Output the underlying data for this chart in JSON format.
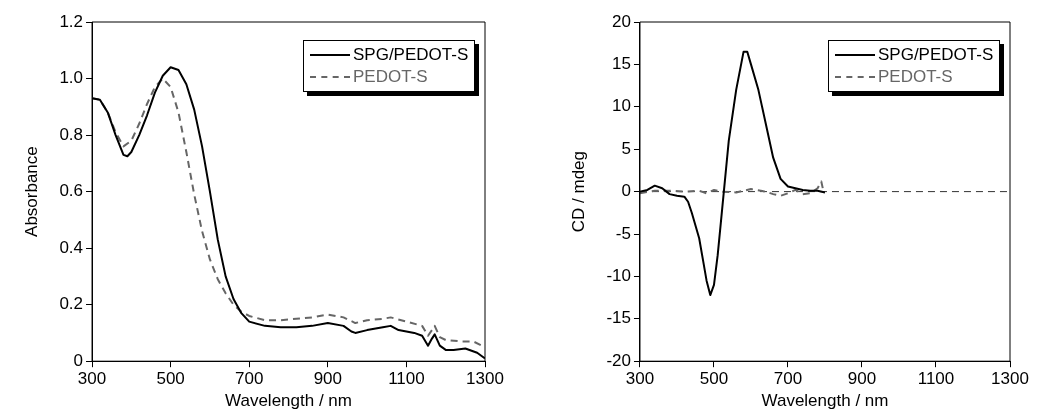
{
  "chart_data": [
    {
      "type": "line",
      "xlabel": "Wavelength / nm",
      "ylabel": "Absorbance",
      "xlim": [
        300,
        1300
      ],
      "xticks": [
        300,
        500,
        700,
        900,
        1100,
        1300
      ],
      "ylim": [
        0,
        1.2
      ],
      "yticks": [
        {
          "value": 0,
          "label": "0"
        },
        0.2,
        0.4,
        0.6,
        0.8,
        {
          "value": 1,
          "label": "1.0"
        },
        1.2
      ],
      "grid": false,
      "legend": "top right",
      "marker": "none",
      "series": [
        {
          "name": "SPG/PEDOT-S",
          "color": "#000000",
          "line_style": "solid",
          "x": [
            300,
            320,
            340,
            360,
            380,
            390,
            400,
            420,
            440,
            460,
            480,
            500,
            520,
            540,
            560,
            580,
            600,
            620,
            640,
            660,
            680,
            700,
            740,
            780,
            820,
            860,
            900,
            940,
            960,
            970,
            1000,
            1040,
            1060,
            1080,
            1120,
            1140,
            1155,
            1165,
            1172,
            1185,
            1200,
            1220,
            1250,
            1280,
            1300
          ],
          "values": [
            0.93,
            0.925,
            0.88,
            0.8,
            0.73,
            0.725,
            0.74,
            0.8,
            0.87,
            0.95,
            1.01,
            1.04,
            1.03,
            0.98,
            0.89,
            0.76,
            0.6,
            0.43,
            0.3,
            0.22,
            0.17,
            0.14,
            0.125,
            0.12,
            0.12,
            0.125,
            0.135,
            0.125,
            0.105,
            0.1,
            0.11,
            0.12,
            0.125,
            0.11,
            0.1,
            0.09,
            0.055,
            0.08,
            0.095,
            0.055,
            0.04,
            0.04,
            0.045,
            0.03,
            0.01
          ]
        },
        {
          "name": "PEDOT-S",
          "color": "#666666",
          "line_style": "dashed",
          "x": [
            300,
            320,
            340,
            360,
            380,
            400,
            420,
            440,
            460,
            480,
            500,
            520,
            540,
            560,
            580,
            600,
            620,
            640,
            660,
            680,
            700,
            740,
            780,
            820,
            860,
            900,
            940,
            970,
            1000,
            1040,
            1060,
            1100,
            1140,
            1155,
            1165,
            1172,
            1185,
            1200,
            1240,
            1270,
            1300
          ],
          "values": [
            0.93,
            0.925,
            0.88,
            0.81,
            0.76,
            0.78,
            0.84,
            0.91,
            0.97,
            1.0,
            0.97,
            0.88,
            0.74,
            0.59,
            0.46,
            0.36,
            0.29,
            0.24,
            0.2,
            0.175,
            0.16,
            0.145,
            0.145,
            0.15,
            0.155,
            0.165,
            0.155,
            0.135,
            0.145,
            0.15,
            0.155,
            0.14,
            0.125,
            0.09,
            0.11,
            0.125,
            0.085,
            0.075,
            0.07,
            0.07,
            0.05
          ]
        }
      ]
    },
    {
      "type": "line",
      "xlabel": "Wavelength / nm",
      "ylabel": "CD / mdeg",
      "xlim": [
        300,
        1300
      ],
      "xticks": [
        300,
        500,
        700,
        900,
        1100,
        1300
      ],
      "ylim": [
        -20,
        20
      ],
      "yticks": [
        -20,
        -15,
        -10,
        -5,
        0,
        5,
        10,
        15,
        20
      ],
      "grid": false,
      "legend": "top right",
      "marker": "none",
      "ref_lines": [
        {
          "axis": "y",
          "value": 0,
          "color": "#333333",
          "line_style": "dashed"
        }
      ],
      "series": [
        {
          "name": "SPG/PEDOT-S",
          "color": "#000000",
          "line_style": "solid",
          "x": [
            300,
            320,
            340,
            360,
            380,
            400,
            420,
            430,
            440,
            460,
            470,
            480,
            490,
            500,
            510,
            520,
            530,
            540,
            560,
            580,
            590,
            600,
            620,
            640,
            660,
            680,
            700,
            720,
            740,
            760,
            780,
            800
          ],
          "values": [
            0,
            0.2,
            0.7,
            0.4,
            -0.3,
            -0.5,
            -0.6,
            -1.2,
            -2.5,
            -5.5,
            -8,
            -10.5,
            -12.2,
            -11,
            -7.5,
            -3,
            1.5,
            6,
            12,
            16.5,
            16.5,
            15,
            12,
            8,
            4,
            1.5,
            0.6,
            0.4,
            0.2,
            0.1,
            0.1,
            -0.1
          ]
        },
        {
          "name": "PEDOT-S",
          "color": "#666666",
          "line_style": "dashed",
          "x": [
            300,
            340,
            380,
            420,
            460,
            480,
            500,
            520,
            560,
            600,
            640,
            660,
            680,
            700,
            720,
            740,
            760,
            780,
            790,
            795,
            800
          ],
          "values": [
            -0.2,
            0.1,
            0.1,
            0,
            0.1,
            -0.2,
            0.2,
            0,
            -0.1,
            0.3,
            0,
            -0.3,
            -0.5,
            -0.2,
            0.2,
            -0.3,
            -0.2,
            0.4,
            1.2,
            0.2,
            0
          ]
        }
      ]
    }
  ]
}
